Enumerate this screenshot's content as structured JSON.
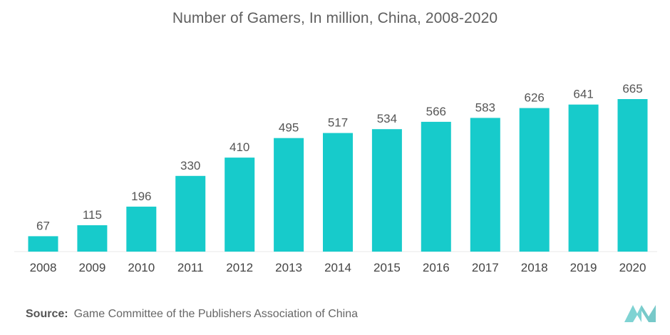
{
  "chart_data": {
    "type": "bar",
    "title": "Number of Gamers, In million, China, 2008-2020",
    "xlabel": "",
    "ylabel": "",
    "categories": [
      "2008",
      "2009",
      "2010",
      "2011",
      "2012",
      "2013",
      "2014",
      "2015",
      "2016",
      "2017",
      "2018",
      "2019",
      "2020"
    ],
    "values": [
      67,
      115,
      196,
      330,
      410,
      495,
      517,
      534,
      566,
      583,
      626,
      641,
      665
    ],
    "ylim": [
      0,
      665
    ],
    "grid": false,
    "legend": "none",
    "bar_color": "#17cbcb"
  },
  "footer": {
    "source_label": "Source:",
    "source_text": "Game Committee of the Publishers Association of China"
  },
  "logo": {
    "icon": "brand-logo-icon",
    "color": "#7fd3d3"
  }
}
